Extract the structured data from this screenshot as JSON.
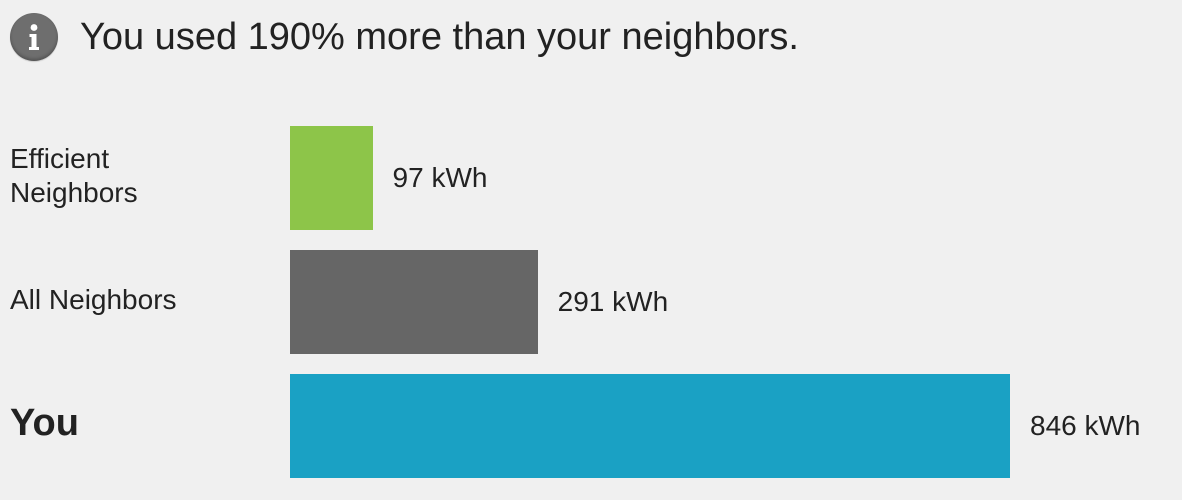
{
  "header": {
    "icon": "info-icon",
    "message": "You used 190% more than your neighbors."
  },
  "chart_data": {
    "type": "bar",
    "orientation": "horizontal",
    "categories": [
      "Efficient Neighbors",
      "All Neighbors",
      "You"
    ],
    "values": [
      97,
      291,
      846
    ],
    "value_labels": [
      "97 kWh",
      "291 kWh",
      "846 kWh"
    ],
    "unit": "kWh",
    "colors": [
      "#8dc549",
      "#666666",
      "#1aa1c4"
    ],
    "emphasized_category": "You",
    "title": "",
    "xlabel": "",
    "ylabel": "",
    "grid": false,
    "legend": "none"
  }
}
